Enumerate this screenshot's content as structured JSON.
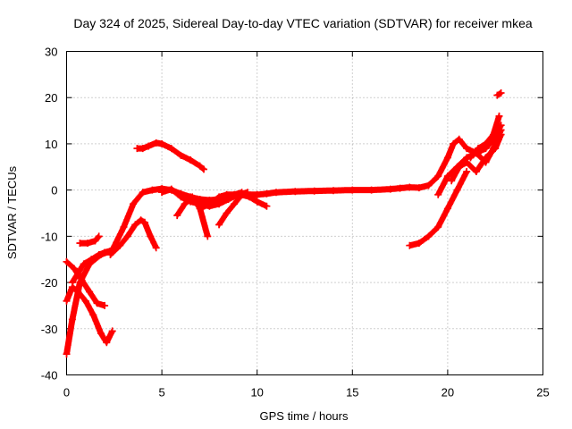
{
  "chart_data": {
    "type": "scatter",
    "title": "Day 324 of 2025, Sidereal Day-to-day VTEC variation (SDTVAR) for receiver mkea",
    "xlabel": "GPS time / hours",
    "ylabel": "SDTVAR / TECUs",
    "xlim": [
      0,
      25
    ],
    "ylim": [
      -40,
      30
    ],
    "xticks": [
      0,
      5,
      10,
      15,
      20,
      25
    ],
    "yticks": [
      -40,
      -30,
      -20,
      -10,
      0,
      10,
      20,
      30
    ],
    "xtick_labels": [
      "0",
      "5",
      "10",
      "15",
      "20",
      "25"
    ],
    "ytick_labels": [
      "-40",
      "-30",
      "-20",
      "-10",
      "0",
      "10",
      "20",
      "30"
    ],
    "grid": true,
    "marker": "plus",
    "color": "#ff0000",
    "series": [
      {
        "name": "s1",
        "x": [
          0.0,
          0.3,
          0.7,
          1.2,
          1.8,
          2.4,
          3.0,
          3.5,
          4.0,
          4.5,
          5.0,
          5.5,
          6.0,
          6.5,
          7.0,
          7.5,
          8.0,
          8.5,
          9.0,
          9.5,
          10.0,
          10.5,
          11.0,
          12.0,
          13.0,
          14.0,
          15.0,
          16.0,
          17.0,
          17.5,
          18.0,
          18.5,
          19.0,
          19.5,
          20.0,
          20.3,
          20.6,
          21.0,
          21.5,
          22.0,
          22.4,
          22.8
        ],
        "values": [
          -35.5,
          -28,
          -20,
          -16,
          -14,
          -13,
          -8,
          -3,
          -0.5,
          0,
          0.3,
          0,
          -0.8,
          -1.5,
          -2,
          -2.2,
          -2,
          -1.5,
          -1.2,
          -1,
          -1,
          -0.8,
          -0.5,
          -0.3,
          -0.2,
          -0.1,
          0,
          0,
          0.2,
          0.4,
          0.6,
          0.5,
          1,
          3,
          7,
          10,
          11,
          9,
          8,
          9,
          11,
          14
        ]
      },
      {
        "name": "s2",
        "x": [
          0.0,
          0.4,
          0.8,
          1.2,
          1.6,
          2.0
        ],
        "values": [
          -15.5,
          -17,
          -19.5,
          -22,
          -24.5,
          -25
        ]
      },
      {
        "name": "s3",
        "x": [
          0.0,
          0.3,
          0.6,
          1.0,
          1.4,
          1.8,
          2.1,
          2.4
        ],
        "values": [
          -24,
          -21,
          -22,
          -24,
          -27,
          -31,
          -33,
          -30.5
        ]
      },
      {
        "name": "s4",
        "x": [
          0.7,
          1.1,
          1.5,
          1.7
        ],
        "values": [
          -11.5,
          -11.5,
          -11,
          -10
        ]
      },
      {
        "name": "s5",
        "x": [
          0.3,
          0.6,
          0.9,
          1.3,
          1.7,
          2.0,
          2.4
        ],
        "values": [
          -20,
          -18,
          -16,
          -15,
          -14,
          -13.5,
          -13
        ]
      },
      {
        "name": "s6",
        "x": [
          2.3,
          2.8,
          3.2,
          3.6,
          3.9,
          4.1,
          4.4,
          4.7
        ],
        "values": [
          -14,
          -12,
          -10,
          -7.5,
          -6.5,
          -7,
          -10,
          -12.5
        ]
      },
      {
        "name": "s7",
        "x": [
          3.7,
          4.0,
          4.3,
          4.7,
          5.0,
          5.5,
          6.0,
          6.5,
          7.0,
          7.2
        ],
        "values": [
          9,
          9,
          9.5,
          10.2,
          10,
          9,
          7.5,
          6.5,
          5.2,
          4.5
        ]
      },
      {
        "name": "s8",
        "x": [
          5.0,
          5.5,
          6.0,
          6.5,
          7.0,
          7.5,
          8.0,
          8.5,
          9.0,
          9.5
        ],
        "values": [
          -0.5,
          0.2,
          -1.5,
          -2.5,
          -3,
          -3.5,
          -3,
          -2,
          -1,
          -0.5
        ]
      },
      {
        "name": "s9",
        "x": [
          5.8,
          6.2,
          6.6,
          7.0,
          7.4
        ],
        "values": [
          -5.5,
          -3,
          -1.5,
          -4,
          -10
        ]
      },
      {
        "name": "s10",
        "x": [
          7.0,
          7.5,
          8.0,
          8.4,
          8.8,
          9.2
        ],
        "values": [
          -4,
          -3,
          -1.5,
          -1,
          -1,
          -0.5
        ]
      },
      {
        "name": "s11",
        "x": [
          8.0,
          8.4,
          8.8,
          9.2,
          9.6,
          10.0,
          10.5
        ],
        "values": [
          -7.5,
          -5,
          -3,
          -1,
          -1.5,
          -2.5,
          -3.5
        ]
      },
      {
        "name": "s12",
        "x": [
          18.0,
          18.5,
          19.0,
          19.5,
          20.0,
          20.5,
          21.0
        ],
        "values": [
          -12,
          -11.5,
          -10,
          -8,
          -4,
          0,
          4
        ]
      },
      {
        "name": "s13",
        "x": [
          19.5,
          20.0,
          20.5,
          21.0,
          21.5,
          22.0,
          22.4,
          22.8
        ],
        "values": [
          -1,
          3,
          5,
          7,
          8,
          6,
          9,
          13
        ]
      },
      {
        "name": "s14",
        "x": [
          20.2,
          20.6,
          21.0,
          21.5,
          22.0,
          22.5,
          22.8
        ],
        "values": [
          2,
          5,
          6,
          4,
          7,
          9,
          12
        ]
      },
      {
        "name": "s15",
        "x": [
          21.2,
          21.6,
          22.0,
          22.4,
          22.7
        ],
        "values": [
          7,
          9,
          10,
          12,
          16
        ]
      },
      {
        "name": "s16",
        "x": [
          22.6,
          22.8
        ],
        "values": [
          20.5,
          21
        ]
      }
    ]
  }
}
